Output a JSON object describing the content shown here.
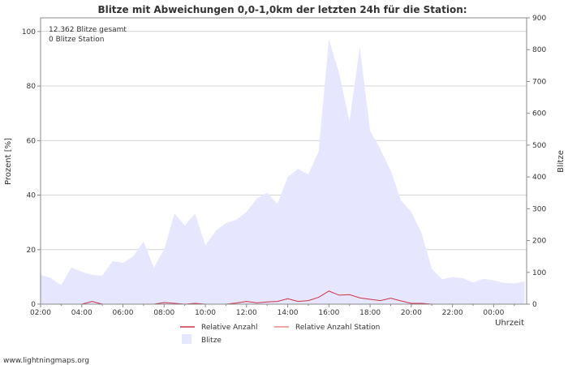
{
  "chart_data": {
    "type": "area",
    "title": "Blitze mit Abweichungen 0,0-1,0km der letzten 24h für die Station:",
    "xlabel": "Uhrzeit",
    "ylabel_left": "Prozent   [%]",
    "ylabel_right": "Blitze",
    "ylim_left": [
      0,
      105
    ],
    "ylim_right": [
      0,
      900
    ],
    "xlim_hours": [
      2.0,
      25.6
    ],
    "x_tick_labels": [
      "02:00",
      "04:00",
      "06:00",
      "08:00",
      "10:00",
      "12:00",
      "14:00",
      "16:00",
      "18:00",
      "20:00",
      "22:00",
      "00:00"
    ],
    "y_left_ticks": [
      0,
      20,
      40,
      60,
      80,
      100
    ],
    "y_right_ticks": [
      0,
      100,
      200,
      300,
      400,
      500,
      600,
      700,
      800,
      900
    ],
    "annotations": [
      "12.362 Blitze gesamt",
      "0 Blitze Station"
    ],
    "legend": [
      "Relative Anzahl",
      "Relative Anzahl Station",
      "Blitze"
    ],
    "series": [
      {
        "name": "Blitze",
        "axis": "right",
        "color": "#e6e6ff",
        "x": [
          2.0,
          2.5,
          3.0,
          3.5,
          4.0,
          4.5,
          5.0,
          5.5,
          6.0,
          6.5,
          7.0,
          7.5,
          8.0,
          8.5,
          9.0,
          9.5,
          10.0,
          10.5,
          11.0,
          11.5,
          12.0,
          12.5,
          13.0,
          13.5,
          14.0,
          14.5,
          15.0,
          15.5,
          16.0,
          16.5,
          17.0,
          17.5,
          18.0,
          18.5,
          19.0,
          19.5,
          20.0,
          20.5,
          21.0,
          21.5,
          22.0,
          22.5,
          23.0,
          23.5,
          24.0,
          24.5,
          25.0,
          25.5
        ],
        "values": [
          92,
          82,
          60,
          115,
          102,
          92,
          90,
          135,
          130,
          150,
          197,
          115,
          172,
          285,
          247,
          285,
          185,
          230,
          255,
          265,
          290,
          332,
          350,
          315,
          400,
          425,
          408,
          480,
          833,
          725,
          575,
          808,
          545,
          487,
          420,
          326,
          290,
          223,
          110,
          78,
          85,
          82,
          68,
          80,
          75,
          67,
          65,
          72
        ]
      },
      {
        "name": "Relative Anzahl",
        "axis": "left",
        "color": "#cc3344",
        "x": [
          4.0,
          4.5,
          5.0,
          7.5,
          8.0,
          8.5,
          9.0,
          9.5,
          10.0,
          10.5,
          11.0,
          11.5,
          12.0,
          12.5,
          13.0,
          13.5,
          14.0,
          14.5,
          15.0,
          15.5,
          16.0,
          16.5,
          17.0,
          17.5,
          18.0,
          18.5,
          19.0,
          19.5,
          20.0,
          20.5,
          21.0
        ],
        "values": [
          0,
          1.0,
          0,
          0,
          0.6,
          0.3,
          0,
          0.3,
          0,
          0,
          0,
          0.4,
          1.0,
          0.5,
          0.8,
          1.0,
          2.0,
          1.0,
          1.3,
          2.5,
          4.8,
          3.3,
          3.5,
          2.3,
          1.8,
          1.3,
          2.2,
          1.2,
          0.3,
          0.3,
          0
        ]
      },
      {
        "name": "Relative Anzahl Station",
        "axis": "left",
        "color": "#ee8888",
        "x": [],
        "values": []
      }
    ]
  },
  "footer": {
    "source": "www.lightningmaps.org"
  }
}
